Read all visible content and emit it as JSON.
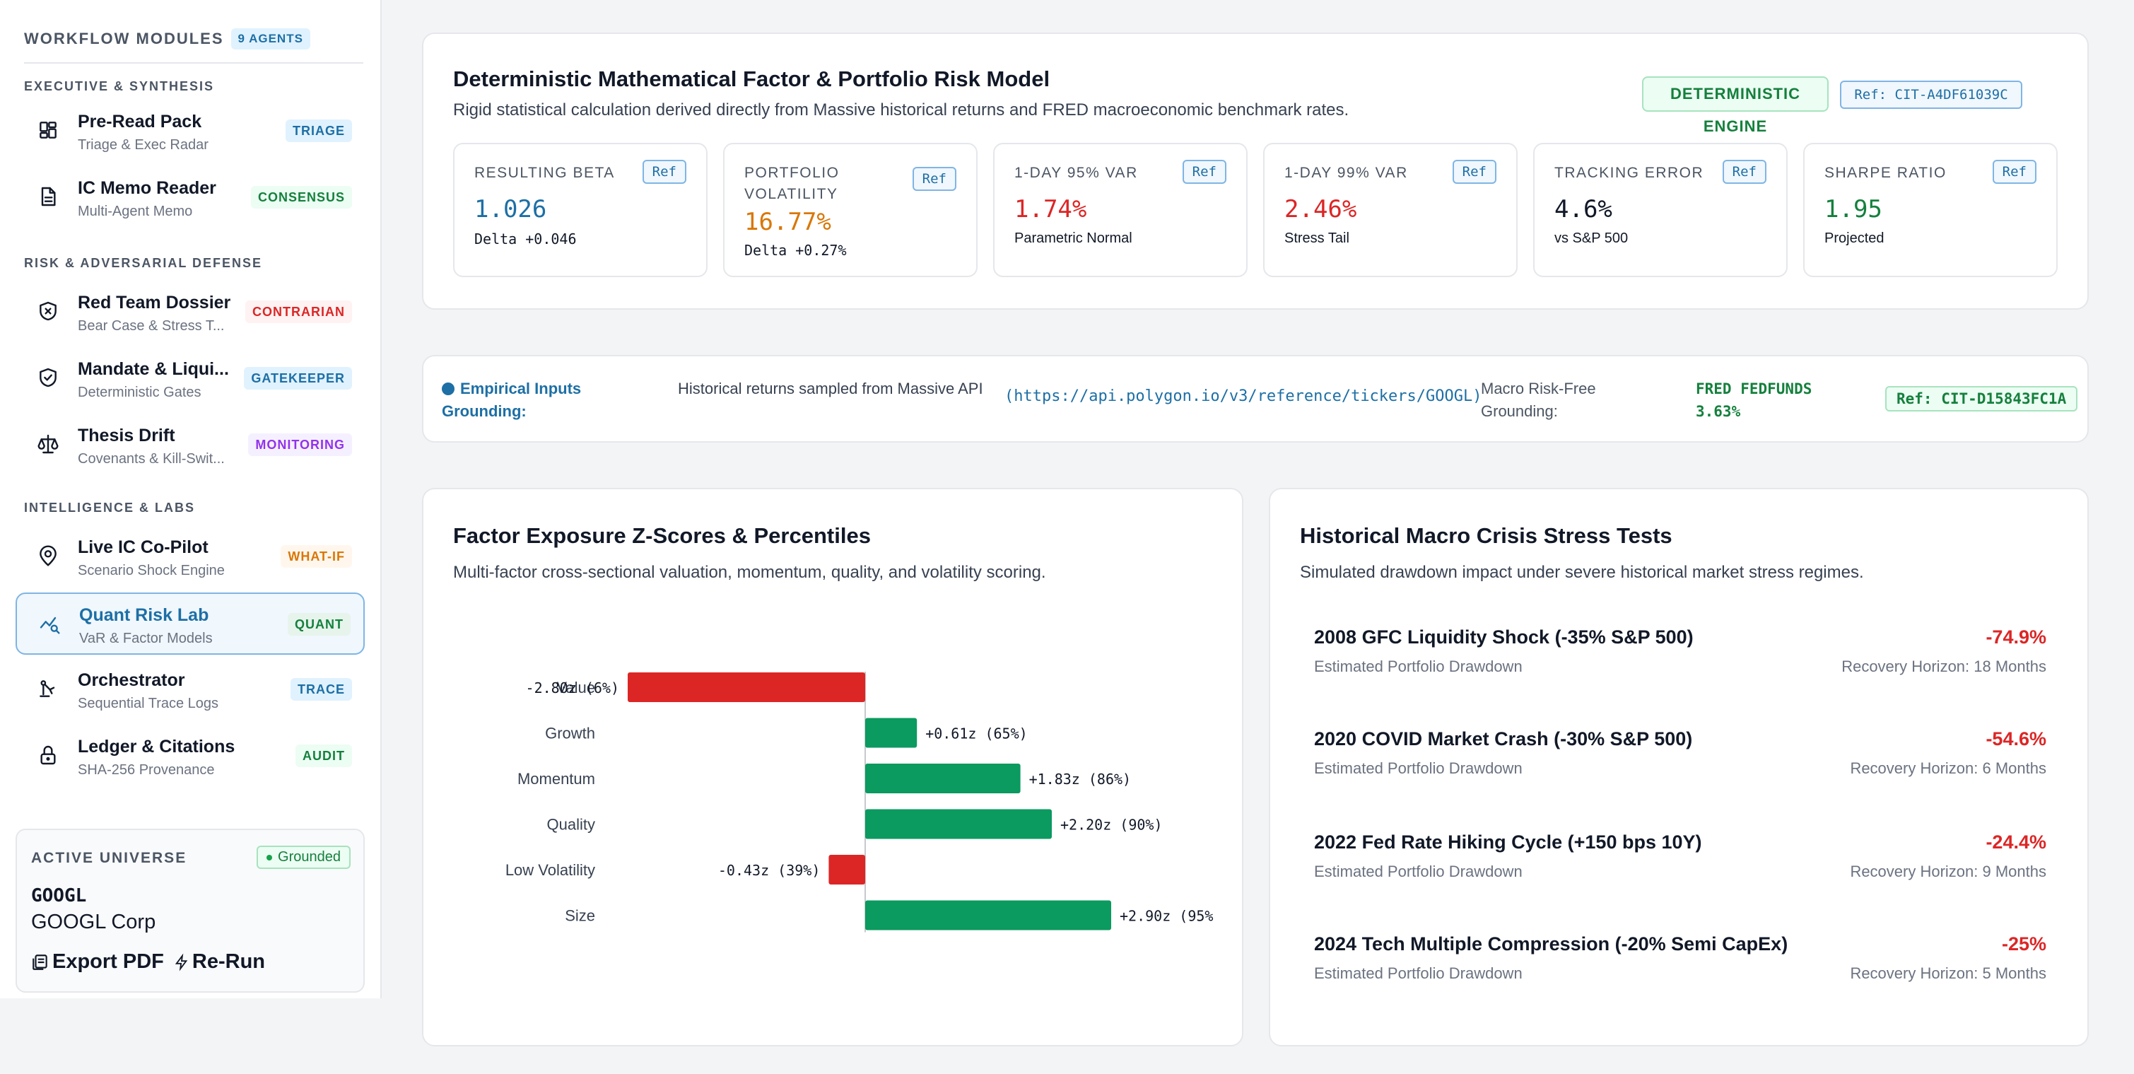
{
  "sidebar": {
    "title": "WORKFLOW MODULES",
    "agents_badge": "9 AGENTS",
    "sections": [
      {
        "label": "EXECUTIVE & SYNTHESIS"
      },
      {
        "label": "RISK & ADVERSARIAL DEFENSE"
      },
      {
        "label": "INTELLIGENCE & LABS"
      }
    ],
    "items": [
      {
        "label": "Pre-Read Pack",
        "sub": "Triage & Exec Radar",
        "tag": "TRIAGE",
        "tag_color": "#1d6fa5",
        "tag_bg": "#e0f2fe",
        "icon": "dashboard-icon"
      },
      {
        "label": "IC Memo Reader",
        "sub": "Multi-Agent Memo",
        "tag": "CONSENSUS",
        "tag_color": "#15803d",
        "tag_bg": "#ecfdf3",
        "icon": "document-icon"
      },
      {
        "label": "Red Team Dossier",
        "sub": "Bear Case & Stress T...",
        "tag": "CONTRARIAN",
        "tag_color": "#dc2626",
        "tag_bg": "#fef2f2",
        "icon": "shield-x-icon"
      },
      {
        "label": "Mandate & Liqui...",
        "sub": "Deterministic Gates",
        "tag": "GATEKEEPER",
        "tag_color": "#1d6fa5",
        "tag_bg": "#e0f2fe",
        "icon": "shield-check-icon"
      },
      {
        "label": "Thesis Drift",
        "sub": "Covenants & Kill-Swit...",
        "tag": "MONITORING",
        "tag_color": "#9333ea",
        "tag_bg": "#f5f0ff",
        "icon": "scale-icon"
      },
      {
        "label": "Live IC Co-Pilot",
        "sub": "Scenario Shock Engine",
        "tag": "WHAT-IF",
        "tag_color": "#d97706",
        "tag_bg": "#fff7ed",
        "icon": "radar-pin-icon"
      },
      {
        "label": "Quant Risk Lab",
        "sub": "VaR & Factor Models",
        "tag": "QUANT",
        "tag_color": "#15803d",
        "tag_bg": "#e6f4ec",
        "icon": "chart-search-icon"
      },
      {
        "label": "Orchestrator",
        "sub": "Sequential Trace Logs",
        "tag": "TRACE",
        "tag_color": "#1d6fa5",
        "tag_bg": "#e0f2fe",
        "icon": "robot-arm-icon"
      },
      {
        "label": "Ledger & Citations",
        "sub": "SHA-256 Provenance",
        "tag": "AUDIT",
        "tag_color": "#15803d",
        "tag_bg": "#ecfdf3",
        "icon": "lock-icon"
      }
    ],
    "universe": {
      "title": "ACTIVE UNIVERSE",
      "status": "Grounded",
      "ticker": "GOOGL",
      "name": "GOOGL Corp",
      "export_label": "Export PDF",
      "rerun_label": "Re-Run"
    }
  },
  "risk_model": {
    "title": "Deterministic Mathematical Factor & Portfolio Risk Model",
    "description": "Rigid statistical calculation derived directly from Massive historical returns and FRED macroeconomic benchmark rates.",
    "engine_badge": "DETERMINISTIC ENGINE",
    "ref": "Ref: CIT-A4DF61039C",
    "metrics": [
      {
        "label": "RESULTING BETA",
        "value": "1.026",
        "sub": "Delta +0.046",
        "color": "#1d6fa5",
        "ref": "Ref"
      },
      {
        "label": "PORTFOLIO VOLATILITY",
        "value": "16.77%",
        "sub": "Delta +0.27%",
        "color": "#d97706",
        "ref": "Ref"
      },
      {
        "label": "1-DAY 95% VAR",
        "value": "1.74%",
        "sub": "Parametric Normal",
        "color": "#dc2626",
        "ref": "Ref"
      },
      {
        "label": "1-DAY 99% VAR",
        "value": "2.46%",
        "sub": "Stress Tail",
        "color": "#dc2626",
        "ref": "Ref"
      },
      {
        "label": "TRACKING ERROR",
        "value": "4.6%",
        "sub": "vs S&P 500",
        "color": "#111827",
        "ref": "Ref"
      },
      {
        "label": "SHARPE RATIO",
        "value": "1.95",
        "sub": "Projected",
        "color": "#15803d",
        "ref": "Ref"
      }
    ]
  },
  "inputs": {
    "label": "Empirical Inputs Grounding:",
    "source": "Historical returns sampled from Massive API",
    "url": "(https://api.polygon.io/v3/reference/tickers/GOOGL)",
    "macro_label": "Macro Risk-Free Grounding:",
    "macro_value": "FRED FEDFUNDS 3.63%",
    "ref": "Ref: CIT-D15843FC1A"
  },
  "factor_card": {
    "title": "Factor Exposure Z-Scores & Percentiles",
    "description": "Multi-factor cross-sectional valuation, momentum, quality, and volatility scoring."
  },
  "chart_data": {
    "type": "bar",
    "orientation": "horizontal",
    "categories": [
      "Value",
      "Growth",
      "Momentum",
      "Quality",
      "Low Volatility",
      "Size"
    ],
    "values": [
      -2.8,
      0.61,
      1.83,
      2.2,
      -0.43,
      2.9
    ],
    "percentiles": [
      "6%",
      "65%",
      "86%",
      "90%",
      "39%",
      "95%"
    ],
    "data_labels": [
      "-2.80z (6%)",
      "+0.61z (65%)",
      "+1.83z (86%)",
      "+2.20z (90%)",
      "-0.43z (39%)",
      "+2.90z (95%"
    ],
    "xlim": [
      -3,
      4
    ],
    "positive_color": "#0b9a5f",
    "negative_color": "#dc2626"
  },
  "stress_card": {
    "title": "Historical Macro Crisis Stress Tests",
    "description": "Simulated drawdown impact under severe historical market stress regimes.",
    "rows": [
      {
        "name": "2008 GFC Liquidity Shock (-35% S&P 500)",
        "value": "-74.9%",
        "estimate": "Estimated Portfolio Drawdown",
        "horizon": "Recovery Horizon: 18 Months"
      },
      {
        "name": "2020 COVID Market Crash (-30% S&P 500)",
        "value": "-54.6%",
        "estimate": "Estimated Portfolio Drawdown",
        "horizon": "Recovery Horizon: 6 Months"
      },
      {
        "name": "2022 Fed Rate Hiking Cycle (+150 bps 10Y)",
        "value": "-24.4%",
        "estimate": "Estimated Portfolio Drawdown",
        "horizon": "Recovery Horizon: 9 Months"
      },
      {
        "name": "2024 Tech Multiple Compression (-20% Semi CapEx)",
        "value": "-25%",
        "estimate": "Estimated Portfolio Drawdown",
        "horizon": "Recovery Horizon: 5 Months"
      }
    ]
  }
}
